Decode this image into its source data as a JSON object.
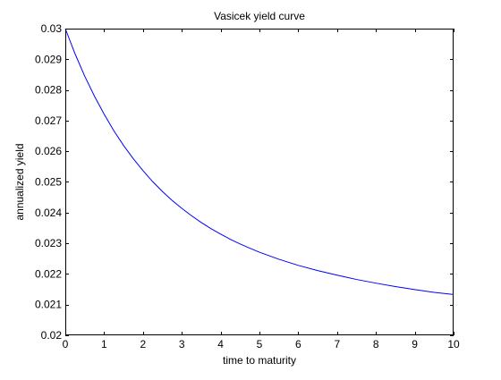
{
  "chart_data": {
    "type": "line",
    "title": "Vasicek yield curve",
    "xlabel": "time to maturity",
    "ylabel": "annualized yield",
    "xlim": [
      0,
      10
    ],
    "ylim": [
      0.02,
      0.03
    ],
    "xticks": [
      0,
      1,
      2,
      3,
      4,
      5,
      6,
      7,
      8,
      9,
      10
    ],
    "xtick_labels": [
      "0",
      "1",
      "2",
      "3",
      "4",
      "5",
      "6",
      "7",
      "8",
      "9",
      "10"
    ],
    "yticks": [
      0.02,
      0.021,
      0.022,
      0.023,
      0.024,
      0.025,
      0.026,
      0.027,
      0.028,
      0.029,
      0.03
    ],
    "ytick_labels": [
      "0.02",
      "0.021",
      "0.022",
      "0.023",
      "0.024",
      "0.025",
      "0.026",
      "0.027",
      "0.028",
      "0.029",
      "0.03"
    ],
    "grid": false,
    "line_color": "#0000ff",
    "series": [
      {
        "x": [
          0,
          0.25,
          0.5,
          0.75,
          1,
          1.25,
          1.5,
          1.75,
          2,
          2.25,
          2.5,
          2.75,
          3,
          3.25,
          3.5,
          3.75,
          4,
          4.25,
          4.5,
          4.75,
          5,
          5.5,
          6,
          6.5,
          7,
          7.5,
          8,
          8.5,
          9,
          9.5,
          10
        ],
        "values": [
          0.03,
          0.02918,
          0.02845,
          0.0278,
          0.02721,
          0.02667,
          0.02619,
          0.02576,
          0.02537,
          0.02501,
          0.02469,
          0.0244,
          0.02414,
          0.0239,
          0.02368,
          0.02348,
          0.0233,
          0.02313,
          0.02298,
          0.02284,
          0.02271,
          0.02248,
          0.02228,
          0.02211,
          0.02196,
          0.02182,
          0.0217,
          0.02159,
          0.02149,
          0.0214,
          0.02133
        ]
      }
    ]
  }
}
